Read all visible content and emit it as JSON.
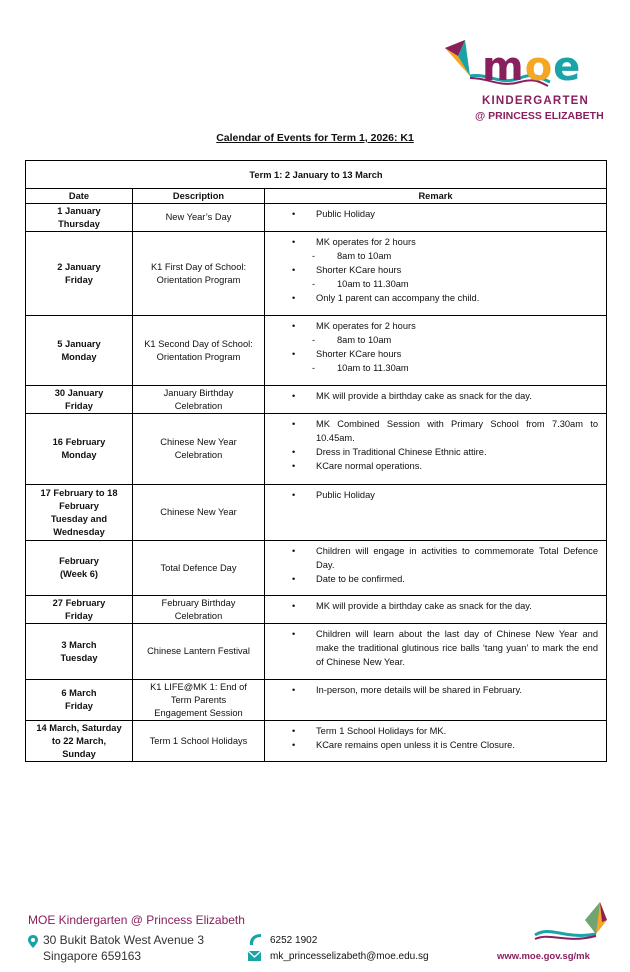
{
  "logo": {
    "moe": "MOE",
    "kindergarten": "KINDERGARTEN",
    "branch": "@ PRINCESS ELIZABETH"
  },
  "title": "Calendar of Events for Term 1, 2026: K1",
  "term": "Term 1: 2 January to 13 March",
  "headers": {
    "date": "Date",
    "description": "Description",
    "remark": "Remark"
  },
  "rows": [
    {
      "date": [
        "1 January",
        "Thursday"
      ],
      "desc": [
        "New Year’s Day"
      ],
      "remarks": [
        {
          "t": "bullet",
          "text": "Public Holiday"
        }
      ],
      "h": 28
    },
    {
      "date": [
        "2 January",
        "Friday"
      ],
      "desc": [
        "K1 First Day of School:",
        "Orientation Program"
      ],
      "remarks": [
        {
          "t": "bullet",
          "text": "MK operates for 2 hours"
        },
        {
          "t": "dash",
          "text": "8am to 10am"
        },
        {
          "t": "bullet",
          "text": "Shorter KCare hours"
        },
        {
          "t": "dash",
          "text": "10am to 11.30am"
        },
        {
          "t": "bullet",
          "text": "Only 1 parent can accompany the child."
        }
      ],
      "h": 84
    },
    {
      "date": [
        "5 January",
        "Monday"
      ],
      "desc": [
        "K1 Second Day of School:",
        "Orientation Program"
      ],
      "remarks": [
        {
          "t": "bullet",
          "text": "MK operates for 2 hours"
        },
        {
          "t": "dash",
          "text": "8am to 10am"
        },
        {
          "t": "bullet",
          "text": "Shorter KCare hours"
        },
        {
          "t": "dash",
          "text": "10am to 11.30am"
        }
      ],
      "h": 70
    },
    {
      "date": [
        "30 January",
        "Friday"
      ],
      "desc": [
        "January Birthday",
        "Celebration"
      ],
      "remarks": [
        {
          "t": "bullet",
          "text": "MK will provide a birthday cake as snack for the day."
        }
      ],
      "h": 28
    },
    {
      "date": [
        "16 February",
        "Monday"
      ],
      "desc": [
        "Chinese New Year",
        "Celebration"
      ],
      "remarks": [
        {
          "t": "bullet",
          "text": "MK Combined Session with Primary School from 7.30am to 10.45am."
        },
        {
          "t": "bullet",
          "text": "Dress in Traditional Chinese Ethnic attire."
        },
        {
          "t": "bullet",
          "text": "KCare normal operations."
        }
      ],
      "h": 71
    },
    {
      "date": [
        "17 February to 18",
        "February",
        "Tuesday and",
        "Wednesday"
      ],
      "desc": [
        "Chinese New Year"
      ],
      "remarks": [
        {
          "t": "bullet",
          "text": "Public Holiday"
        }
      ],
      "h": 56
    },
    {
      "date": [
        "February",
        "(Week 6)"
      ],
      "desc": [
        "Total Defence Day"
      ],
      "remarks": [
        {
          "t": "bullet",
          "text": "Children will engage in activities to commemorate Total Defence Day."
        },
        {
          "t": "bullet",
          "text": "Date to be confirmed."
        }
      ],
      "h": 55
    },
    {
      "date": [
        "27 February",
        "Friday"
      ],
      "desc": [
        "February Birthday",
        "Celebration"
      ],
      "remarks": [
        {
          "t": "bullet",
          "text": "MK will provide a birthday cake as snack for the day."
        }
      ],
      "h": 28
    },
    {
      "date": [
        "3 March",
        "Tuesday"
      ],
      "desc": [
        "Chinese Lantern Festival"
      ],
      "remarks": [
        {
          "t": "bullet",
          "text": "Children will learn about the last day of Chinese New Year and make the traditional glutinous rice balls ‘tang yuan’ to mark the end of Chinese New Year."
        }
      ],
      "h": 56
    },
    {
      "date": [
        "6 March",
        "Friday"
      ],
      "desc": [
        "K1 LIFE@MK 1: End of",
        "Term Parents",
        "Engagement Session"
      ],
      "remarks": [
        {
          "t": "bullet",
          "text": "In-person, more details will be shared in February."
        }
      ],
      "h": 41
    },
    {
      "date": [
        "14 March, Saturday",
        "to 22 March,",
        "Sunday"
      ],
      "desc": [
        "Term 1 School Holidays"
      ],
      "remarks": [
        {
          "t": "bullet",
          "text": "Term 1 School Holidays for MK."
        },
        {
          "t": "bullet",
          "text": "KCare remains open unless it is Centre Closure."
        }
      ],
      "h": 41
    }
  ],
  "footer": {
    "name": "MOE Kindergarten @ Princess Elizabeth",
    "address1": "30 Bukit Batok West Avenue 3",
    "address2": "Singapore 659163",
    "phone": "6252 1902",
    "email": "mk_princesselizabeth@moe.edu.sg",
    "url": "www.moe.gov.sg/mk"
  },
  "colors": {
    "purple": "#8a1f5e",
    "orange": "#f5a623",
    "teal": "#1aa3a8"
  }
}
